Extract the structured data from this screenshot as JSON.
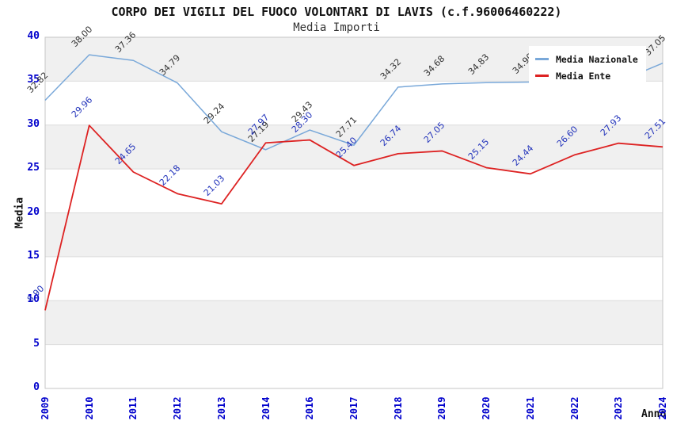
{
  "title": "CORPO DEI VIGILI DEL FUOCO VOLONTARI DI LAVIS (c.f.96006460222)",
  "subtitle": "Media Importi",
  "legend": {
    "items": [
      {
        "label": "Media Nazionale",
        "color": "#79a8d9"
      },
      {
        "label": "Media Ente",
        "color": "#dd2222"
      }
    ]
  },
  "axes": {
    "xlabel": "Anno",
    "ylabel": "Media",
    "yticks": [
      0,
      5,
      10,
      15,
      20,
      25,
      30,
      35,
      40
    ],
    "tick_color": "#0000cc"
  },
  "colors": {
    "band": "#f0f0f0",
    "grid": "#dcdcdc",
    "plot_border": "#c6c6c6",
    "page_bg": "#ffffff"
  },
  "chart_data": {
    "type": "line",
    "title": "CORPO DEI VIGILI DEL FUOCO VOLONTARI DI LAVIS (c.f.96006460222)",
    "subtitle": "Media Importi",
    "xlabel": "Anno",
    "ylabel": "Media",
    "ylim": [
      0,
      40
    ],
    "ytick_step": 5,
    "grid": "horizontal",
    "background_bands": true,
    "legend_position": "top-right",
    "x": [
      "2009",
      "2010",
      "2011",
      "2012",
      "2013",
      "2014",
      "2016",
      "2017",
      "2018",
      "2019",
      "2020",
      "2021",
      "2022",
      "2023",
      "2024"
    ],
    "series": [
      {
        "name": "Media Nazionale",
        "color": "#79a8d9",
        "label_color": "#333333",
        "values": [
          32.82,
          38.0,
          37.36,
          34.79,
          29.24,
          27.19,
          29.43,
          27.71,
          34.32,
          34.68,
          34.83,
          34.9,
          34.93,
          34.95,
          37.05
        ]
      },
      {
        "name": "Media Ente",
        "color": "#dd2222",
        "label_color": "#2233bb",
        "values": [
          8.9,
          29.96,
          24.65,
          22.18,
          21.03,
          27.97,
          28.3,
          25.4,
          26.74,
          27.05,
          25.15,
          24.44,
          26.6,
          27.93,
          27.51
        ]
      }
    ]
  }
}
